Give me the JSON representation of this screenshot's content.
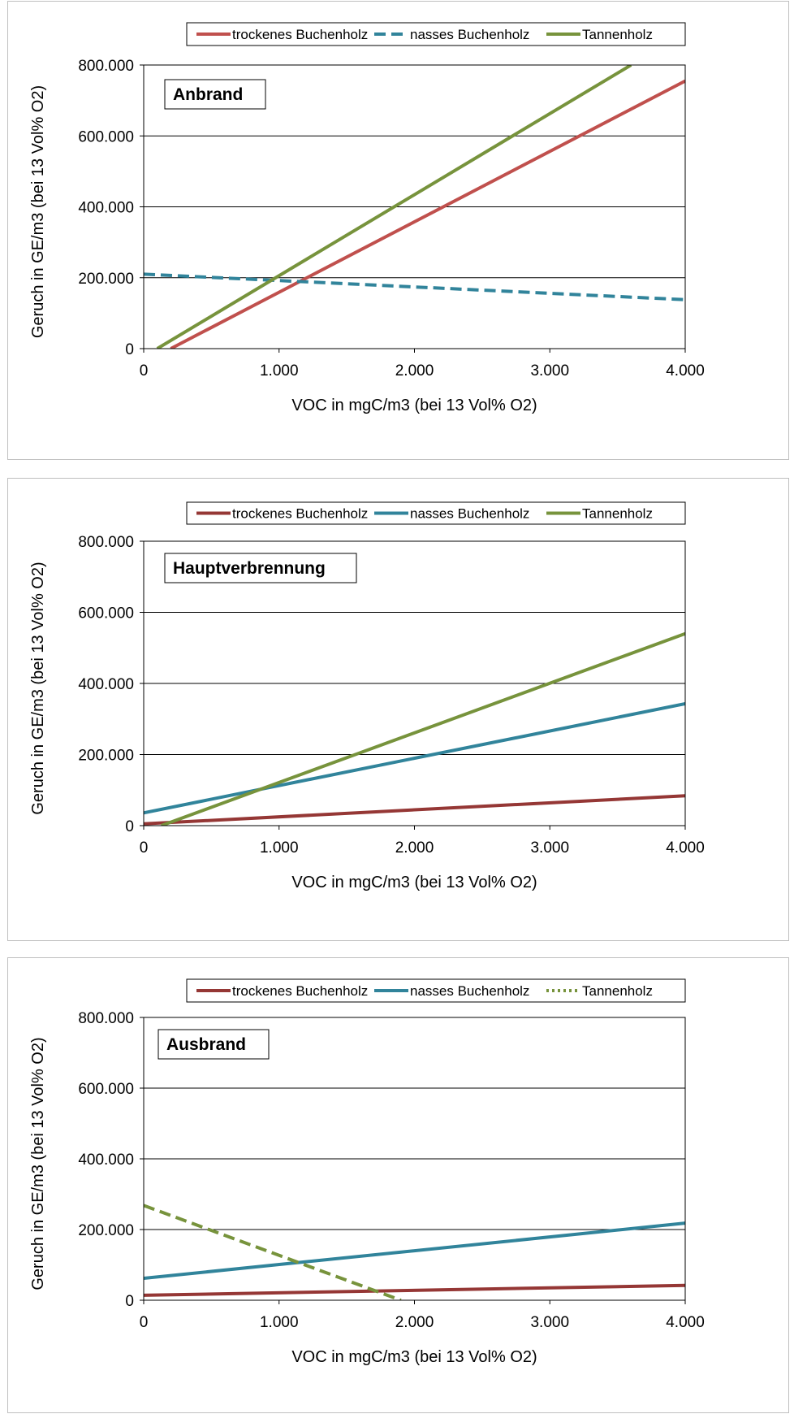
{
  "chart_data": [
    {
      "type": "line",
      "title": "Anbrand",
      "xlabel": "VOC in mgC/m3 (bei 13 Vol% O2)",
      "ylabel": "Geruch in GE/m3 (bei 13 Vol% O2)",
      "xlim": [
        0,
        4000
      ],
      "ylim": [
        0,
        800000
      ],
      "x_ticks": [
        "0",
        "1.000",
        "2.000",
        "3.000",
        "4.000"
      ],
      "y_ticks": [
        "0",
        "200.000",
        "400.000",
        "600.000",
        "800.000"
      ],
      "grid": "horizontal",
      "legend": "top",
      "series": [
        {
          "name": "trockenes Buchenholz",
          "color": "#c0504d",
          "dash": "solid",
          "x": [
            200,
            4000
          ],
          "y": [
            0,
            755000
          ]
        },
        {
          "name": "nasses Buchenholz",
          "color": "#31849b",
          "dash": "dashed",
          "x": [
            0,
            4000
          ],
          "y": [
            210000,
            138000
          ]
        },
        {
          "name": "Tannenholz",
          "color": "#77933c",
          "dash": "solid",
          "x": [
            100,
            3600
          ],
          "y": [
            0,
            800000
          ]
        }
      ]
    },
    {
      "type": "line",
      "title": "Hauptverbrennung",
      "xlabel": "VOC in mgC/m3 (bei 13 Vol% O2)",
      "ylabel": "Geruch in GE/m3 (bei 13 Vol% O2)",
      "xlim": [
        0,
        4000
      ],
      "ylim": [
        0,
        800000
      ],
      "x_ticks": [
        "0",
        "1.000",
        "2.000",
        "3.000",
        "4.000"
      ],
      "y_ticks": [
        "0",
        "200.000",
        "400.000",
        "600.000",
        "800.000"
      ],
      "grid": "horizontal",
      "legend": "top",
      "series": [
        {
          "name": "trockenes Buchenholz",
          "color": "#953735",
          "dash": "solid",
          "x": [
            0,
            4000
          ],
          "y": [
            5000,
            84000
          ]
        },
        {
          "name": "nasses Buchenholz",
          "color": "#31849b",
          "dash": "solid",
          "x": [
            0,
            4000
          ],
          "y": [
            36000,
            343000
          ]
        },
        {
          "name": "Tannenholz",
          "color": "#77933c",
          "dash": "solid",
          "x": [
            130,
            4000
          ],
          "y": [
            0,
            540000
          ]
        }
      ]
    },
    {
      "type": "line",
      "title": "Ausbrand",
      "xlabel": "VOC in mgC/m3 (bei 13 Vol% O2)",
      "ylabel": "Geruch in GE/m3 (bei 13 Vol% O2)",
      "xlim": [
        0,
        4000
      ],
      "ylim": [
        0,
        800000
      ],
      "x_ticks": [
        "0",
        "1.000",
        "2.000",
        "3.000",
        "4.000"
      ],
      "y_ticks": [
        "0",
        "200.000",
        "400.000",
        "600.000",
        "800.000"
      ],
      "grid": "horizontal",
      "legend": "top",
      "series": [
        {
          "name": "trockenes Buchenholz",
          "color": "#953735",
          "dash": "solid",
          "legend_dash": "solid",
          "x": [
            0,
            4000
          ],
          "y": [
            14000,
            42000
          ]
        },
        {
          "name": "nasses Buchenholz",
          "color": "#31849b",
          "dash": "solid",
          "legend_dash": "solid",
          "x": [
            0,
            4000
          ],
          "y": [
            62000,
            218000
          ]
        },
        {
          "name": "Tannenholz",
          "color": "#77933c",
          "dash": "dashed",
          "legend_dash": "dotted",
          "x": [
            0,
            1900
          ],
          "y": [
            268000,
            0
          ]
        }
      ]
    }
  ]
}
